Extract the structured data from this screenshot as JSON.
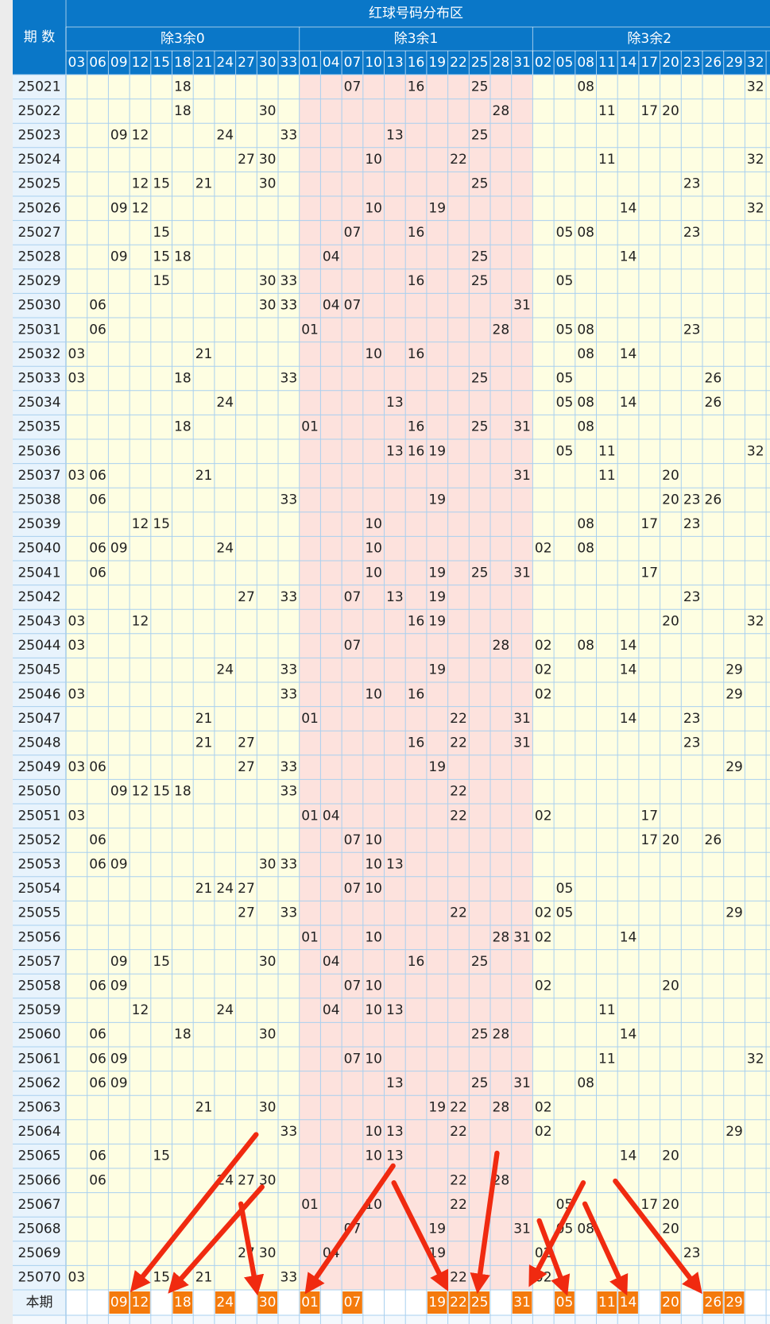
{
  "header": {
    "period_label": "期 数",
    "title": "红球号码分布区",
    "groups": [
      {
        "label": "除3余0",
        "numbers": [
          "03",
          "06",
          "09",
          "12",
          "15",
          "18",
          "21",
          "24",
          "27",
          "30",
          "33"
        ]
      },
      {
        "label": "除3余1",
        "numbers": [
          "01",
          "04",
          "07",
          "10",
          "13",
          "16",
          "19",
          "22",
          "25",
          "28",
          "31"
        ]
      },
      {
        "label": "除3余2",
        "numbers": [
          "02",
          "05",
          "08",
          "11",
          "14",
          "17",
          "20",
          "23",
          "26",
          "29",
          "32"
        ]
      }
    ]
  },
  "rows": [
    {
      "period": "25021",
      "numbers": [
        "18",
        "07",
        "16",
        "25",
        "08",
        "32"
      ]
    },
    {
      "period": "25022",
      "numbers": [
        "18",
        "30",
        "28",
        "11",
        "17",
        "20"
      ]
    },
    {
      "period": "25023",
      "numbers": [
        "09",
        "12",
        "24",
        "33",
        "13",
        "25"
      ]
    },
    {
      "period": "25024",
      "numbers": [
        "27",
        "30",
        "10",
        "22",
        "11",
        "32"
      ]
    },
    {
      "period": "25025",
      "numbers": [
        "12",
        "15",
        "21",
        "30",
        "25",
        "23"
      ]
    },
    {
      "period": "25026",
      "numbers": [
        "09",
        "12",
        "10",
        "19",
        "14",
        "32"
      ]
    },
    {
      "period": "25027",
      "numbers": [
        "15",
        "07",
        "16",
        "05",
        "08",
        "23"
      ]
    },
    {
      "period": "25028",
      "numbers": [
        "09",
        "15",
        "18",
        "04",
        "25",
        "14"
      ]
    },
    {
      "period": "25029",
      "numbers": [
        "15",
        "30",
        "33",
        "16",
        "25",
        "05"
      ]
    },
    {
      "period": "25030",
      "numbers": [
        "06",
        "30",
        "33",
        "04",
        "07",
        "31"
      ]
    },
    {
      "period": "25031",
      "numbers": [
        "06",
        "01",
        "28",
        "05",
        "08",
        "23"
      ]
    },
    {
      "period": "25032",
      "numbers": [
        "03",
        "21",
        "10",
        "16",
        "08",
        "14"
      ]
    },
    {
      "period": "25033",
      "numbers": [
        "03",
        "18",
        "33",
        "25",
        "05",
        "26"
      ]
    },
    {
      "period": "25034",
      "numbers": [
        "24",
        "13",
        "05",
        "08",
        "14",
        "26"
      ]
    },
    {
      "period": "25035",
      "numbers": [
        "18",
        "01",
        "16",
        "25",
        "31",
        "08"
      ]
    },
    {
      "period": "25036",
      "numbers": [
        "13",
        "16",
        "19",
        "05",
        "11",
        "32"
      ]
    },
    {
      "period": "25037",
      "numbers": [
        "03",
        "06",
        "21",
        "31",
        "11",
        "20"
      ]
    },
    {
      "period": "25038",
      "numbers": [
        "06",
        "33",
        "19",
        "20",
        "23",
        "26"
      ]
    },
    {
      "period": "25039",
      "numbers": [
        "12",
        "15",
        "10",
        "08",
        "17",
        "23"
      ]
    },
    {
      "period": "25040",
      "numbers": [
        "06",
        "09",
        "24",
        "10",
        "02",
        "08"
      ]
    },
    {
      "period": "25041",
      "numbers": [
        "06",
        "10",
        "19",
        "25",
        "31",
        "17"
      ]
    },
    {
      "period": "25042",
      "numbers": [
        "27",
        "33",
        "07",
        "13",
        "19",
        "23"
      ]
    },
    {
      "period": "25043",
      "numbers": [
        "03",
        "12",
        "16",
        "19",
        "20",
        "32"
      ]
    },
    {
      "period": "25044",
      "numbers": [
        "03",
        "07",
        "28",
        "02",
        "08",
        "14"
      ]
    },
    {
      "period": "25045",
      "numbers": [
        "24",
        "33",
        "19",
        "02",
        "14",
        "29"
      ]
    },
    {
      "period": "25046",
      "numbers": [
        "03",
        "33",
        "10",
        "16",
        "02",
        "29"
      ]
    },
    {
      "period": "25047",
      "numbers": [
        "21",
        "01",
        "22",
        "31",
        "14",
        "23"
      ]
    },
    {
      "period": "25048",
      "numbers": [
        "21",
        "27",
        "16",
        "22",
        "31",
        "23"
      ]
    },
    {
      "period": "25049",
      "numbers": [
        "03",
        "06",
        "27",
        "33",
        "19",
        "29"
      ]
    },
    {
      "period": "25050",
      "numbers": [
        "09",
        "12",
        "15",
        "18",
        "33",
        "22"
      ]
    },
    {
      "period": "25051",
      "numbers": [
        "03",
        "01",
        "04",
        "22",
        "02",
        "17"
      ]
    },
    {
      "period": "25052",
      "numbers": [
        "06",
        "07",
        "10",
        "17",
        "20",
        "26"
      ]
    },
    {
      "period": "25053",
      "numbers": [
        "06",
        "09",
        "30",
        "33",
        "10",
        "13"
      ]
    },
    {
      "period": "25054",
      "numbers": [
        "21",
        "24",
        "27",
        "07",
        "10",
        "05"
      ]
    },
    {
      "period": "25055",
      "numbers": [
        "27",
        "33",
        "22",
        "02",
        "05",
        "29"
      ]
    },
    {
      "period": "25056",
      "numbers": [
        "01",
        "10",
        "28",
        "31",
        "02",
        "14"
      ]
    },
    {
      "period": "25057",
      "numbers": [
        "09",
        "15",
        "30",
        "04",
        "16",
        "25"
      ]
    },
    {
      "period": "25058",
      "numbers": [
        "06",
        "09",
        "07",
        "10",
        "02",
        "20"
      ]
    },
    {
      "period": "25059",
      "numbers": [
        "12",
        "24",
        "04",
        "10",
        "13",
        "11"
      ]
    },
    {
      "period": "25060",
      "numbers": [
        "06",
        "18",
        "30",
        "25",
        "28",
        "14"
      ]
    },
    {
      "period": "25061",
      "numbers": [
        "06",
        "09",
        "07",
        "10",
        "11",
        "32"
      ]
    },
    {
      "period": "25062",
      "numbers": [
        "06",
        "09",
        "13",
        "25",
        "31",
        "08"
      ]
    },
    {
      "period": "25063",
      "numbers": [
        "21",
        "30",
        "19",
        "22",
        "28",
        "02"
      ]
    },
    {
      "period": "25064",
      "numbers": [
        "33",
        "10",
        "13",
        "22",
        "02",
        "29"
      ]
    },
    {
      "period": "25065",
      "numbers": [
        "06",
        "15",
        "10",
        "13",
        "14",
        "20"
      ]
    },
    {
      "period": "25066",
      "numbers": [
        "06",
        "24",
        "27",
        "30",
        "22",
        "28"
      ]
    },
    {
      "period": "25067",
      "numbers": [
        "01",
        "10",
        "22",
        "05",
        "17",
        "20"
      ]
    },
    {
      "period": "25068",
      "numbers": [
        "07",
        "19",
        "31",
        "05",
        "08",
        "20"
      ]
    },
    {
      "period": "25069",
      "numbers": [
        "27",
        "30",
        "04",
        "19",
        "02",
        "23"
      ]
    },
    {
      "period": "25070",
      "numbers": [
        "03",
        "15",
        "21",
        "33",
        "22",
        "02"
      ]
    }
  ],
  "current": {
    "label": "本期",
    "numbers": [
      "09",
      "12",
      "18",
      "24",
      "30",
      "01",
      "07",
      "19",
      "22",
      "25",
      "31",
      "05",
      "11",
      "14",
      "20",
      "26",
      "29"
    ]
  }
}
